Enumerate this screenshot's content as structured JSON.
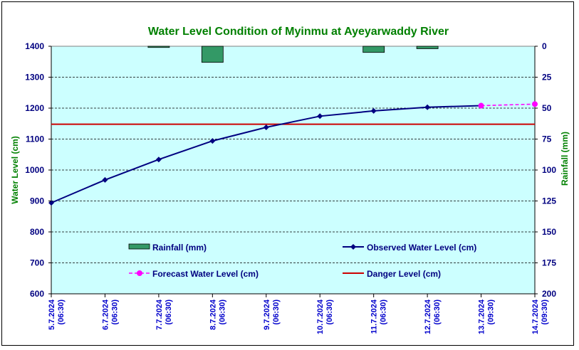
{
  "chart_data": {
    "type": "line",
    "title": "Water Level Condition of Myinmu at Ayeyarwaddy River",
    "ylabel": "Water Level (cm)",
    "y2label": "Rainfall (mm)",
    "ylim": [
      600,
      1400
    ],
    "y2lim": [
      0,
      200
    ],
    "y2_inverted": true,
    "yticks": [
      600,
      700,
      800,
      900,
      1000,
      1100,
      1200,
      1300,
      1400
    ],
    "y2ticks": [
      0,
      25,
      50,
      75,
      100,
      125,
      150,
      175,
      200
    ],
    "categories": [
      {
        "date": "5.7.2024",
        "time": "(06:30)"
      },
      {
        "date": "6.7.2024",
        "time": "(06:30)"
      },
      {
        "date": "7.7.2024",
        "time": "(06:30)"
      },
      {
        "date": "8.7.2024",
        "time": "(06:30)"
      },
      {
        "date": "9.7.2024",
        "time": "(06:30)"
      },
      {
        "date": "10.7.2024",
        "time": "(06:30)"
      },
      {
        "date": "11.7.2024",
        "time": "(06:30)"
      },
      {
        "date": "12.7.2024",
        "time": "(06:30)"
      },
      {
        "date": "13.7.2024",
        "time": "(09:30)"
      },
      {
        "date": "14.7.2024",
        "time": "(09:30)"
      }
    ],
    "series": [
      {
        "name": "Rainfall (mm)",
        "type": "bar",
        "axis": "y2",
        "color": "#339966",
        "values": [
          0,
          0,
          1,
          13,
          0,
          0,
          5,
          2,
          0,
          0
        ]
      },
      {
        "name": "Observed Water Level (cm)",
        "type": "line",
        "color": "#000080",
        "marker": "diamond",
        "values": [
          894,
          968,
          1034,
          1094,
          1138,
          1174,
          1191,
          1203,
          1208,
          null
        ]
      },
      {
        "name": "Forecast Water Level (cm)",
        "type": "line",
        "color": "#ff00ff",
        "marker": "circle",
        "dashed": true,
        "values": [
          null,
          null,
          null,
          null,
          null,
          null,
          null,
          null,
          1208,
          1213
        ]
      },
      {
        "name": "Danger Level (cm)",
        "type": "hline",
        "color": "#cc0000",
        "value": 1148
      }
    ]
  },
  "colors": {
    "plot_bg": "#ccffff",
    "title": "#008000",
    "tick": "#000080",
    "xtick": "#0000cc"
  }
}
